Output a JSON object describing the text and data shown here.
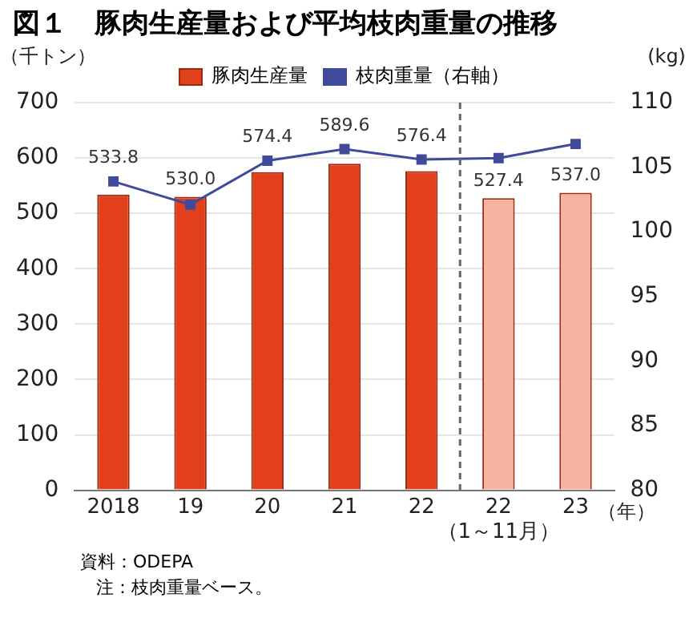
{
  "chart_data": {
    "type": "bar",
    "title": "図１　豚肉生産量および平均枝肉重量の推移",
    "categories": [
      "2018",
      "19",
      "20",
      "21",
      "22",
      "22\n（1～11月）",
      "23"
    ],
    "xlabel": "（年）",
    "ylabel": "（千トン）",
    "y2label": "(kg)",
    "series": [
      {
        "name": "豚肉生産量",
        "color": "#e2401c",
        "colors": [
          "#e2401c",
          "#e2401c",
          "#e2401c",
          "#e2401c",
          "#e2401c",
          "#f6b3a0",
          "#f6b3a0"
        ],
        "values": [
          533.8,
          530.0,
          574.4,
          589.6,
          576.4,
          527.4,
          537.0
        ],
        "value_labels": [
          "533.8",
          "530.0",
          "574.4",
          "589.6",
          "576.4",
          "527.4",
          "537.0"
        ]
      },
      {
        "name": "枝肉重量（右軸）",
        "type": "line",
        "axis": "y2",
        "color": "#3f4b9a",
        "marker": "square",
        "values": [
          103.9,
          102.1,
          105.5,
          106.4,
          105.6,
          105.7,
          106.8
        ]
      }
    ],
    "ylim": [
      0,
      700
    ],
    "yticks": [
      0,
      100,
      200,
      300,
      400,
      500,
      600,
      700
    ],
    "y2lim": [
      80,
      110
    ],
    "y2ticks": [
      80,
      85,
      90,
      95,
      100,
      105,
      110
    ],
    "ref_lines": [
      {
        "axis": "x",
        "value": "22\n（1～11月）",
        "color": "#666666",
        "line_style": "dashed"
      }
    ],
    "grid": "y",
    "legend": "top",
    "annotations": [
      "資料：ODEPA",
      "注：枝肉重量ベース。"
    ]
  }
}
